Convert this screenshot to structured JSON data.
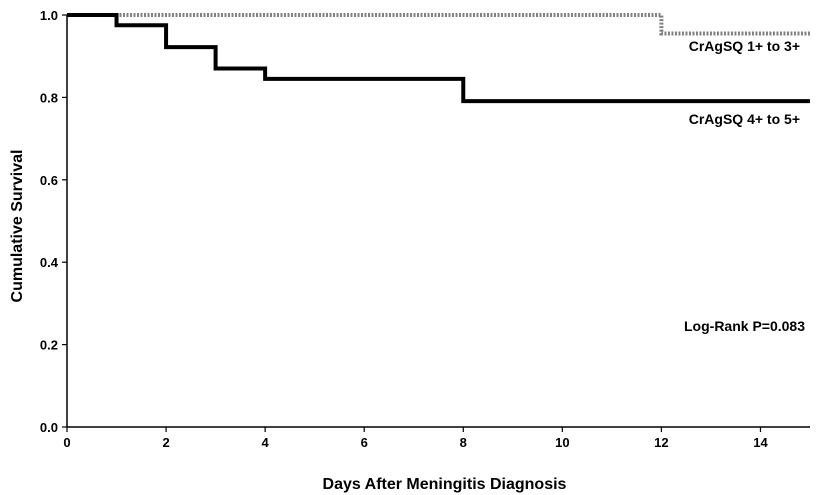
{
  "chart_data": {
    "type": "line",
    "subtype": "kaplan-meier step",
    "xlabel": "Days After Meningitis Diagnosis",
    "ylabel": "Cumulative Survival",
    "xlim": [
      0,
      15
    ],
    "ylim": [
      0,
      1.0
    ],
    "xticks": [
      0,
      2,
      4,
      6,
      8,
      10,
      12,
      14
    ],
    "yticks": [
      0.0,
      0.2,
      0.4,
      0.6,
      0.8,
      1.0
    ],
    "ytick_labels": [
      "0.0",
      "0.2",
      "0.4",
      "0.6",
      "0.8",
      "1.0"
    ],
    "grid": false,
    "series": [
      {
        "name": "CrAgSQ 1+ to 3+",
        "style": "dotted",
        "color": "#808080",
        "steps": [
          [
            0,
            1.0
          ],
          [
            12,
            0.955
          ],
          [
            15,
            0.955
          ]
        ]
      },
      {
        "name": "CrAgSQ 4+ to 5+",
        "style": "solid",
        "color": "#000000",
        "steps": [
          [
            0,
            1.0
          ],
          [
            1,
            0.975
          ],
          [
            2,
            0.922
          ],
          [
            3,
            0.87
          ],
          [
            4,
            0.845
          ],
          [
            8,
            0.791
          ],
          [
            15,
            0.791
          ]
        ]
      }
    ],
    "annotations": [
      {
        "text": "Log-Rank P=0.083"
      }
    ]
  }
}
